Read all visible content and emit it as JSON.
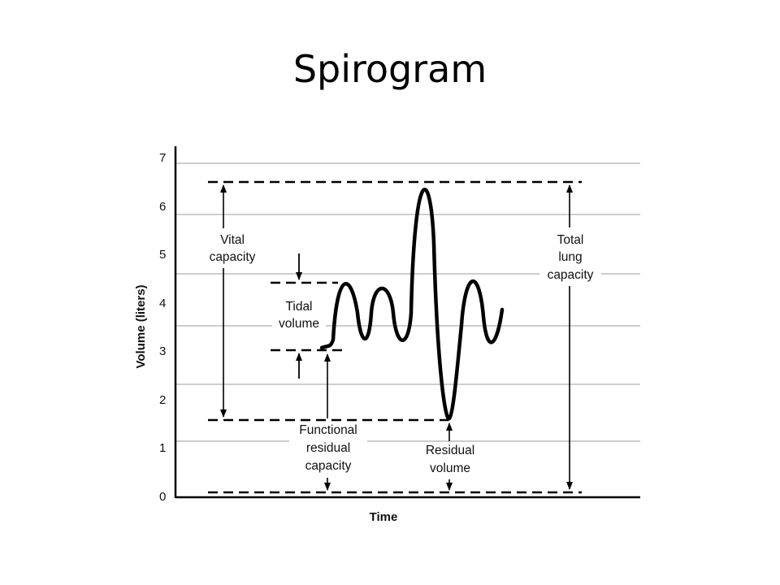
{
  "title": "Spirogram",
  "axes": {
    "ylabel": "Volume (liters)",
    "xlabel": "Time",
    "yticks": [
      "0",
      "1",
      "2",
      "3",
      "4",
      "5",
      "6",
      "7"
    ]
  },
  "labels": {
    "vital_capacity": [
      "Vital",
      "capacity"
    ],
    "tidal_volume": [
      "Tidal",
      "volume"
    ],
    "total_lung_capacity": [
      "Total",
      "lung",
      "capacity"
    ],
    "functional_residual_capacity": [
      "Functional",
      "residual",
      "capacity"
    ],
    "residual_volume": [
      "Residual",
      "volume"
    ]
  },
  "colors": {
    "ink": "#000000",
    "grid": "#b0b0b0"
  }
}
